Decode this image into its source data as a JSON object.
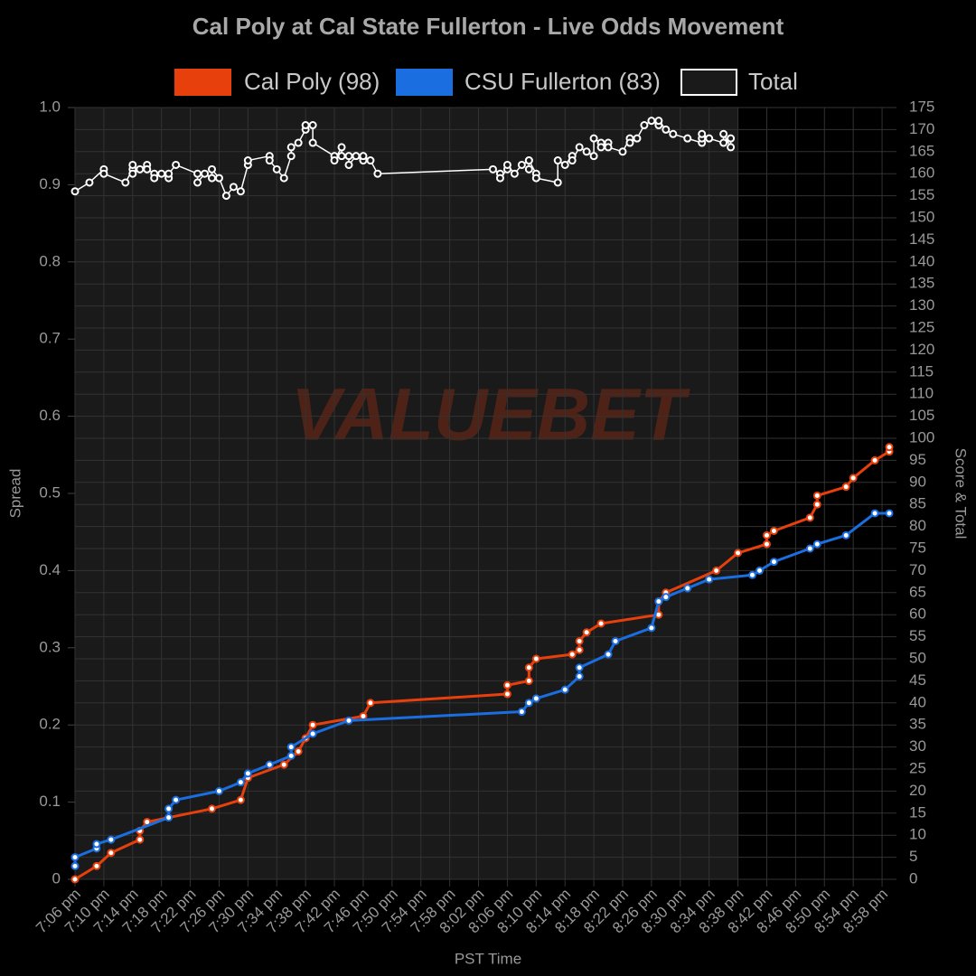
{
  "chart_data": {
    "type": "line",
    "title": "Cal Poly at Cal State Fullerton - Live Odds Movement",
    "watermark": "VALUEBET",
    "x_label": "PST Time",
    "y_label": "Spread",
    "y2_label": "Score & Total",
    "xlim": [
      "7:06 pm",
      "9:00 pm"
    ],
    "xticks": [
      "7:06 pm",
      "7:10 pm",
      "7:14 pm",
      "7:18 pm",
      "7:22 pm",
      "7:26 pm",
      "7:30 pm",
      "7:34 pm",
      "7:38 pm",
      "7:42 pm",
      "7:46 pm",
      "7:50 pm",
      "7:54 pm",
      "7:58 pm",
      "8:02 pm",
      "8:06 pm",
      "8:10 pm",
      "8:14 pm",
      "8:18 pm",
      "8:22 pm",
      "8:26 pm",
      "8:30 pm",
      "8:34 pm",
      "8:38 pm",
      "8:42 pm",
      "8:46 pm",
      "8:50 pm",
      "8:54 pm",
      "8:58 pm"
    ],
    "shade": [
      "7:06 pm",
      "8:38 pm"
    ],
    "ylim": [
      0,
      1
    ],
    "yticks": [
      0,
      0.1,
      0.2,
      0.3,
      0.4,
      0.5,
      0.6,
      0.7,
      0.8,
      0.9,
      {
        "value": 1,
        "label": "1.0"
      }
    ],
    "y2lim": [
      0,
      175
    ],
    "y2ticks": [
      0,
      5,
      10,
      15,
      20,
      25,
      30,
      35,
      40,
      45,
      50,
      55,
      60,
      65,
      70,
      75,
      80,
      85,
      90,
      95,
      100,
      105,
      110,
      115,
      120,
      125,
      130,
      135,
      140,
      145,
      150,
      155,
      160,
      165,
      170,
      175
    ],
    "grid": true,
    "series": [
      {
        "name": "Cal Poly (98)",
        "color": "#e8400c",
        "fill": "#e8400c",
        "axis": "y2",
        "x": [
          "7:06 pm",
          "7:09 pm",
          "7:11 pm",
          "7:15 pm",
          "7:15 pm",
          "7:16 pm",
          "7:25 pm",
          "7:29 pm",
          "7:30 pm",
          "7:35 pm",
          "7:37 pm",
          "7:38 pm",
          "7:39 pm",
          "7:46 pm",
          "7:47 pm",
          "8:06 pm",
          "8:06 pm",
          "8:09 pm",
          "8:09 pm",
          "8:10 pm",
          "8:15 pm",
          "8:16 pm",
          "8:16 pm",
          "8:17 pm",
          "8:19 pm",
          "8:27 pm",
          "8:27 pm",
          "8:28 pm",
          "8:35 pm",
          "8:38 pm",
          "8:42 pm",
          "8:42 pm",
          "8:43 pm",
          "8:48 pm",
          "8:49 pm",
          "8:49 pm",
          "8:53 pm",
          "8:54 pm",
          "8:57 pm",
          "8:59 pm",
          "8:59 pm"
        ],
        "values": [
          0,
          3,
          6,
          9,
          11,
          13,
          16,
          18,
          23,
          26,
          29,
          32,
          35,
          37,
          40,
          42,
          44,
          45,
          48,
          50,
          51,
          52,
          54,
          56,
          58,
          60,
          63,
          65,
          70,
          74,
          76,
          78,
          79,
          82,
          85,
          87,
          89,
          91,
          95,
          97,
          98
        ]
      },
      {
        "name": "CSU Fullerton (83)",
        "color": "#1a6ee0",
        "fill": "#1a6ee0",
        "axis": "y2",
        "x": [
          "7:06 pm",
          "7:06 pm",
          "7:09 pm",
          "7:09 pm",
          "7:11 pm",
          "7:19 pm",
          "7:19 pm",
          "7:20 pm",
          "7:26 pm",
          "7:29 pm",
          "7:30 pm",
          "7:33 pm",
          "7:36 pm",
          "7:36 pm",
          "7:39 pm",
          "7:44 pm",
          "8:08 pm",
          "8:09 pm",
          "8:10 pm",
          "8:14 pm",
          "8:16 pm",
          "8:16 pm",
          "8:20 pm",
          "8:21 pm",
          "8:26 pm",
          "8:27 pm",
          "8:28 pm",
          "8:31 pm",
          "8:34 pm",
          "8:40 pm",
          "8:41 pm",
          "8:43 pm",
          "8:48 pm",
          "8:49 pm",
          "8:53 pm",
          "8:57 pm",
          "8:59 pm"
        ],
        "values": [
          3,
          5,
          7,
          8,
          9,
          14,
          16,
          18,
          20,
          22,
          24,
          26,
          28,
          30,
          33,
          36,
          38,
          40,
          41,
          43,
          46,
          48,
          51,
          54,
          57,
          63,
          64,
          66,
          68,
          69,
          70,
          72,
          75,
          76,
          78,
          83,
          83
        ]
      },
      {
        "name": "Total",
        "color": "#ffffff",
        "fill": "#1a1a1a",
        "axis": "y2",
        "x": [
          "7:06 pm",
          "7:08 pm",
          "7:10 pm",
          "7:10 pm",
          "7:13 pm",
          "7:14 pm",
          "7:14 pm",
          "7:14 pm",
          "7:15 pm",
          "7:16 pm",
          "7:16 pm",
          "7:17 pm",
          "7:17 pm",
          "7:18 pm",
          "7:19 pm",
          "7:19 pm",
          "7:20 pm",
          "7:23 pm",
          "7:23 pm",
          "7:24 pm",
          "7:25 pm",
          "7:25 pm",
          "7:26 pm",
          "7:27 pm",
          "7:28 pm",
          "7:29 pm",
          "7:30 pm",
          "7:30 pm",
          "7:33 pm",
          "7:33 pm",
          "7:34 pm",
          "7:35 pm",
          "7:36 pm",
          "7:36 pm",
          "7:37 pm",
          "7:38 pm",
          "7:38 pm",
          "7:39 pm",
          "7:39 pm",
          "7:42 pm",
          "7:42 pm",
          "7:43 pm",
          "7:43 pm",
          "7:44 pm",
          "7:44 pm",
          "7:45 pm",
          "7:46 pm",
          "7:46 pm",
          "7:47 pm",
          "7:48 pm",
          "8:04 pm",
          "8:05 pm",
          "8:05 pm",
          "8:06 pm",
          "8:06 pm",
          "8:07 pm",
          "8:08 pm",
          "8:09 pm",
          "8:09 pm",
          "8:09 pm",
          "8:10 pm",
          "8:10 pm",
          "8:13 pm",
          "8:13 pm",
          "8:14 pm",
          "8:15 pm",
          "8:15 pm",
          "8:16 pm",
          "8:17 pm",
          "8:18 pm",
          "8:18 pm",
          "8:19 pm",
          "8:19 pm",
          "8:20 pm",
          "8:20 pm",
          "8:22 pm",
          "8:23 pm",
          "8:23 pm",
          "8:24 pm",
          "8:25 pm",
          "8:26 pm",
          "8:27 pm",
          "8:27 pm",
          "8:28 pm",
          "8:29 pm",
          "8:31 pm",
          "8:33 pm",
          "8:33 pm",
          "8:33 pm",
          "8:34 pm",
          "8:36 pm",
          "8:36 pm",
          "8:37 pm",
          "8:37 pm"
        ],
        "values": [
          156,
          158,
          161,
          160,
          158,
          161,
          162,
          160,
          161,
          162,
          161,
          160,
          159,
          160,
          159,
          160,
          162,
          160,
          158,
          160,
          159,
          161,
          159,
          155,
          157,
          156,
          162,
          163,
          164,
          163,
          161,
          159,
          164,
          166,
          167,
          170,
          171,
          171,
          167,
          164,
          163,
          166,
          164,
          164,
          162,
          164,
          163,
          164,
          163,
          160,
          161,
          160,
          159,
          161,
          162,
          160,
          162,
          163,
          161,
          163,
          160,
          159,
          158,
          163,
          162,
          164,
          163,
          166,
          165,
          164,
          168,
          167,
          166,
          167,
          166,
          165,
          168,
          167,
          168,
          171,
          172,
          171,
          172,
          170,
          169,
          168,
          167,
          168,
          169,
          168,
          167,
          169,
          166,
          168
        ]
      }
    ]
  }
}
